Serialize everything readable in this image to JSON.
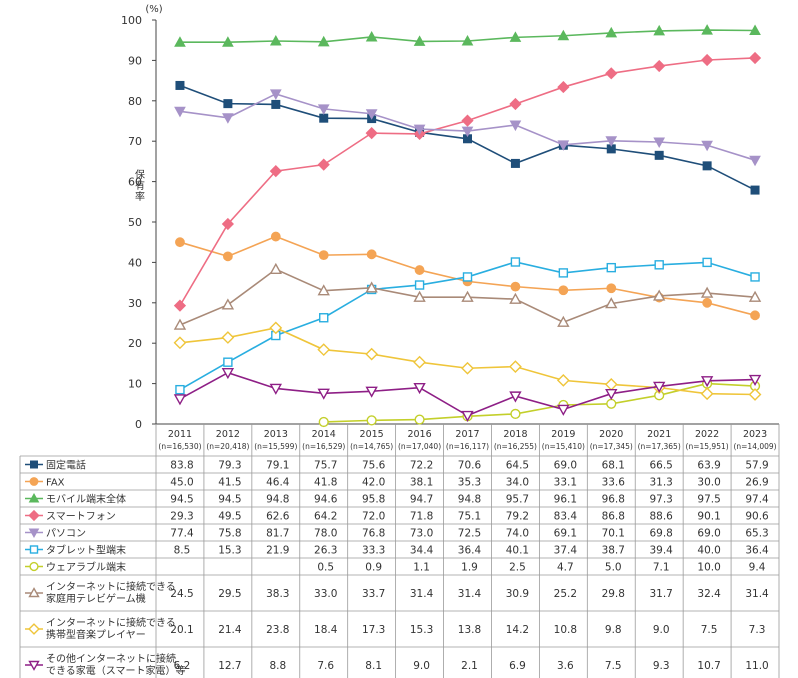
{
  "chart_data": {
    "type": "line",
    "ylabel": "保有率",
    "unit": "(%)",
    "ylim": [
      0,
      100
    ],
    "yticks": [
      0,
      10,
      20,
      30,
      40,
      50,
      60,
      70,
      80,
      90,
      100
    ],
    "grid": false,
    "legend": "table-below",
    "categories": [
      "2011",
      "2012",
      "2013",
      "2014",
      "2015",
      "2016",
      "2017",
      "2018",
      "2019",
      "2020",
      "2021",
      "2022",
      "2023"
    ],
    "sample_sizes": [
      "(n=16,530)",
      "(n=20,418)",
      "(n=15,599)",
      "(n=16,529)",
      "(n=14,765)",
      "(n=17,040)",
      "(n=16,117)",
      "(n=16,255)",
      "(n=15,410)",
      "(n=17,345)",
      "(n=17,365)",
      "(n=15,951)",
      "(n=14,009)"
    ],
    "series": [
      {
        "name": "固定電話",
        "marker": "square",
        "filled": true,
        "color": "#1f4e79",
        "values": [
          83.8,
          79.3,
          79.1,
          75.7,
          75.6,
          72.2,
          70.6,
          64.5,
          69.0,
          68.1,
          66.5,
          63.9,
          57.9
        ]
      },
      {
        "name": "FAX",
        "marker": "circle",
        "filled": true,
        "color": "#f4a455",
        "values": [
          45.0,
          41.5,
          46.4,
          41.8,
          42.0,
          38.1,
          35.3,
          34.0,
          33.1,
          33.6,
          31.3,
          30.0,
          26.9
        ]
      },
      {
        "name": "モバイル端末全体",
        "marker": "triangle-up",
        "filled": true,
        "color": "#5bb85d",
        "values": [
          94.5,
          94.5,
          94.8,
          94.6,
          95.8,
          94.7,
          94.8,
          95.7,
          96.1,
          96.8,
          97.3,
          97.5,
          97.4
        ]
      },
      {
        "name": "スマートフォン",
        "marker": "diamond",
        "filled": true,
        "color": "#ee6d84",
        "values": [
          29.3,
          49.5,
          62.6,
          64.2,
          72.0,
          71.8,
          75.1,
          79.2,
          83.4,
          86.8,
          88.6,
          90.1,
          90.6
        ]
      },
      {
        "name": "パソコン",
        "marker": "triangle-down",
        "filled": true,
        "color": "#a692c8",
        "values": [
          77.4,
          75.8,
          81.7,
          78.0,
          76.8,
          73.0,
          72.5,
          74.0,
          69.1,
          70.1,
          69.8,
          69.0,
          65.3
        ]
      },
      {
        "name": "タブレット型端末",
        "marker": "square",
        "filled": false,
        "color": "#29aee0",
        "values": [
          8.5,
          15.3,
          21.9,
          26.3,
          33.3,
          34.4,
          36.4,
          40.1,
          37.4,
          38.7,
          39.4,
          40.0,
          36.4
        ]
      },
      {
        "name": "ウェアラブル端末",
        "marker": "circle",
        "filled": false,
        "color": "#c3cf2a",
        "values": [
          null,
          null,
          null,
          0.5,
          0.9,
          1.1,
          1.9,
          2.5,
          4.7,
          5.0,
          7.1,
          10.0,
          9.4
        ]
      },
      {
        "name": "インターネットに接続できる家庭用テレビゲーム機",
        "label_lines": [
          "インターネットに接続できる",
          "家庭用テレビゲーム機"
        ],
        "marker": "triangle-up",
        "filled": false,
        "color": "#a98a78",
        "values": [
          24.5,
          29.5,
          38.3,
          33.0,
          33.7,
          31.4,
          31.4,
          30.9,
          25.2,
          29.8,
          31.7,
          32.4,
          31.4
        ]
      },
      {
        "name": "インターネットに接続できる携帯型音楽プレイヤー",
        "label_lines": [
          "インターネットに接続できる",
          "携帯型音楽プレイヤー"
        ],
        "marker": "diamond",
        "filled": false,
        "color": "#efc53a",
        "values": [
          20.1,
          21.4,
          23.8,
          18.4,
          17.3,
          15.3,
          13.8,
          14.2,
          10.8,
          9.8,
          9.0,
          7.5,
          7.3
        ]
      },
      {
        "name": "その他インターネットに接続できる家電（スマート家電）等",
        "label_lines": [
          "その他インターネットに接続",
          "できる家電（スマート家電）等"
        ],
        "marker": "triangle-down",
        "filled": false,
        "color": "#8e1f86",
        "values": [
          6.2,
          12.7,
          8.8,
          7.6,
          8.1,
          9.0,
          2.1,
          6.9,
          3.6,
          7.5,
          9.3,
          10.7,
          11.0
        ]
      }
    ]
  }
}
